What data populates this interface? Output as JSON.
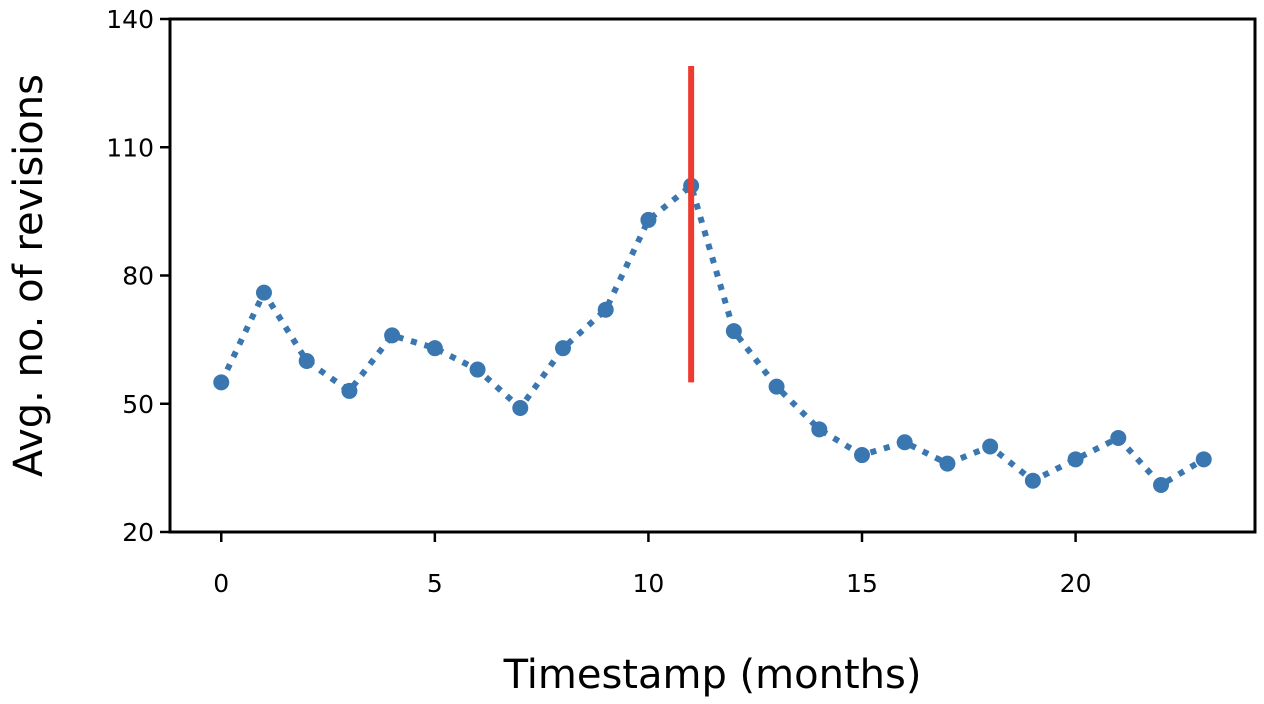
{
  "chart_data": {
    "type": "line",
    "title": "",
    "xlabel": "Timestamp (months)",
    "ylabel": "Avg. no. of revisions",
    "xlim": [
      -1.2,
      24.2
    ],
    "ylim": [
      20,
      140
    ],
    "xticks": [
      0,
      5,
      10,
      15,
      20
    ],
    "yticks": [
      20,
      50,
      80,
      110,
      140
    ],
    "grid": false,
    "legend": "none",
    "series": [
      {
        "color": "#3a76af",
        "style": "dotted-with-markers",
        "x": [
          0,
          1,
          2,
          3,
          4,
          5,
          6,
          7,
          8,
          9,
          10,
          11,
          12,
          13,
          14,
          15,
          16,
          17,
          18,
          19,
          20,
          21,
          22,
          23
        ],
        "y": [
          55,
          76,
          60,
          53,
          66,
          63,
          58,
          49,
          63,
          72,
          93,
          101,
          67,
          54,
          44,
          38,
          41,
          36,
          40,
          32,
          37,
          42,
          31,
          37
        ]
      }
    ],
    "annotations": [
      {
        "type": "vline",
        "x": 11,
        "y_from": 55,
        "y_to": 129,
        "color": "#ee3a2f"
      }
    ]
  }
}
